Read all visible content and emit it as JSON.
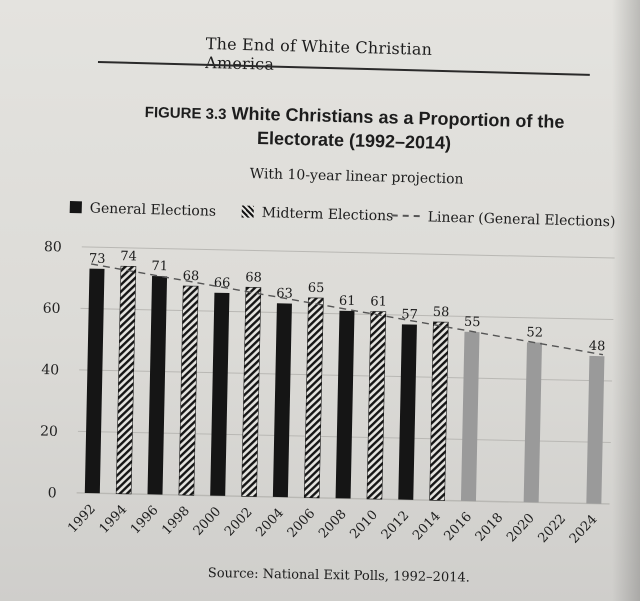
{
  "running_head": "The End of White Christian America",
  "figure": {
    "label": "FIGURE 3.3",
    "title": "White Christians as a Proportion of the Electorate (1992–2014)",
    "subtitle": "With 10-year linear projection"
  },
  "legend": {
    "general": "General Elections",
    "midterm": "Midterm Elections",
    "linear": "Linear (General Elections)"
  },
  "source": "Source: National Exit Polls, 1992–2014.",
  "chart_data": {
    "type": "bar",
    "title": "White Christians as a Proportion of the Electorate (1992–2014)",
    "subtitle": "With 10-year linear projection",
    "categories": [
      "1992",
      "1994",
      "1996",
      "1998",
      "2000",
      "2002",
      "2004",
      "2006",
      "2008",
      "2010",
      "2012",
      "2014",
      "2016",
      "2018",
      "2020",
      "2022",
      "2024"
    ],
    "values": [
      73,
      74,
      71,
      68,
      66,
      68,
      63,
      65,
      61,
      61,
      57,
      58,
      55,
      null,
      52,
      null,
      48
    ],
    "bar_kinds": [
      "general",
      "midterm",
      "general",
      "midterm",
      "general",
      "midterm",
      "general",
      "midterm",
      "general",
      "midterm",
      "general",
      "midterm",
      "projection",
      null,
      "projection",
      null,
      "projection"
    ],
    "series": [
      {
        "name": "General Elections"
      },
      {
        "name": "Midterm Elections"
      },
      {
        "name": "Linear (General Elections)",
        "line": [
          74.5,
          48.5
        ]
      }
    ],
    "ylim": [
      0,
      80
    ],
    "yticks": [
      0,
      20,
      40,
      60,
      80
    ],
    "grid": true,
    "legend_position": "top",
    "colors": {
      "general": "#151515",
      "midterm_dark": "#151515",
      "midterm_light": "#e4e3df",
      "projection": "#9a9a9a",
      "trend": "#555555",
      "grid": "#b9b8b4"
    }
  }
}
